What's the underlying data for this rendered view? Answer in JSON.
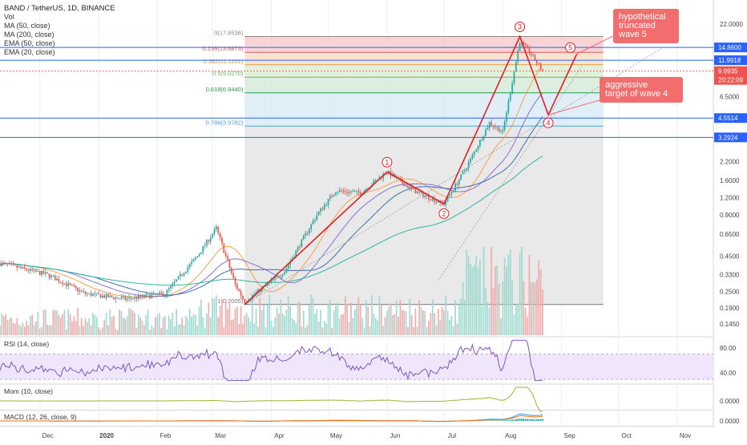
{
  "header": {
    "title": "BAND / TetherUS, 1D, BINANCE",
    "vol": "Vol",
    "indicators": [
      "MA (50, close)",
      "MA (200, close)",
      "EMA (50, close)",
      "EMA (20, close)"
    ]
  },
  "annotations": {
    "wave5_box": [
      "hypothetical",
      "truncated",
      "wave 5"
    ],
    "wave4_box": [
      "aggressive",
      "target of wave 4"
    ]
  },
  "chart_data": {
    "type": "candlestick",
    "symbol": "BAND / TetherUS",
    "interval": "1D",
    "exchange": "BINANCE",
    "y_scale": "log",
    "ylim": [
      0.12,
      32
    ],
    "x_ticks": [
      "Dec",
      "2020",
      "Feb",
      "Mar",
      "Apr",
      "May",
      "Jun",
      "Jul",
      "Aug",
      "Sep",
      "Oct",
      "Nov"
    ],
    "y_ticks": [
      "22.0000",
      "14.8600",
      "11.9918",
      "9.9935",
      "6.5000",
      "4.5514",
      "3.2924",
      "2.2000",
      "1.6000",
      "1.2000",
      "0.9000",
      "0.6500",
      "0.4500",
      "0.3300",
      "0.2500",
      "0.1900",
      "0.1450"
    ],
    "price_labels": [
      {
        "text": "14.8600",
        "color": "#2962ff"
      },
      {
        "text": "11.9918",
        "color": "#2962ff"
      },
      {
        "text": "9.9935",
        "color": "#ef5350"
      },
      {
        "text": "20:22:09",
        "color": "#ef5350"
      },
      {
        "text": "4.5514",
        "color": "#2962ff"
      },
      {
        "text": "3.2924",
        "color": "#2962ff"
      }
    ],
    "horizontal_levels": [
      14.86,
      11.9918,
      4.5514,
      3.2924
    ],
    "last_price": 9.9935,
    "fibonacci": [
      {
        "ratio": "0",
        "label": "0(17.8536)",
        "value": 17.8536
      },
      {
        "ratio": "0.236",
        "label": "0.236(13.6873)",
        "value": 13.6873
      },
      {
        "ratio": "0.382",
        "label": "0.382(11.1101)",
        "value": 11.1101
      },
      {
        "ratio": "0.5",
        "label": "0.5(9.0270)",
        "value": 9.027
      },
      {
        "ratio": "0.618",
        "label": "0.618(6.9440)",
        "value": 6.944
      },
      {
        "ratio": "0.786",
        "label": "0.786(3.9782)",
        "value": 3.9782
      },
      {
        "ratio": "1",
        "label": "1(0.2005)",
        "value": 0.2005
      }
    ],
    "wave_labels": [
      "1",
      "2",
      "3",
      "4",
      "5"
    ],
    "wave_points": [
      {
        "date": "2020-03-18",
        "price": 0.2005
      },
      {
        "date": "2020-06-01",
        "price": 1.85
      },
      {
        "date": "2020-07-01",
        "price": 1.08
      },
      {
        "date": "2020-08-10",
        "price": 17.85
      },
      {
        "date": "2020-08-25",
        "price": 4.8
      },
      {
        "date": "2020-09-09",
        "price": 13.3
      }
    ],
    "rsi": {
      "label": "RSI (14, close)",
      "y_ticks": [
        "80.00",
        "40.00"
      ],
      "band": [
        30,
        70
      ]
    },
    "momentum": {
      "label": "Mom (10, close)",
      "y_ticks": [
        "0.0000"
      ]
    },
    "macd": {
      "label": "MACD (12, 26, close, 9)",
      "y_ticks": [
        "0.0000"
      ]
    }
  }
}
